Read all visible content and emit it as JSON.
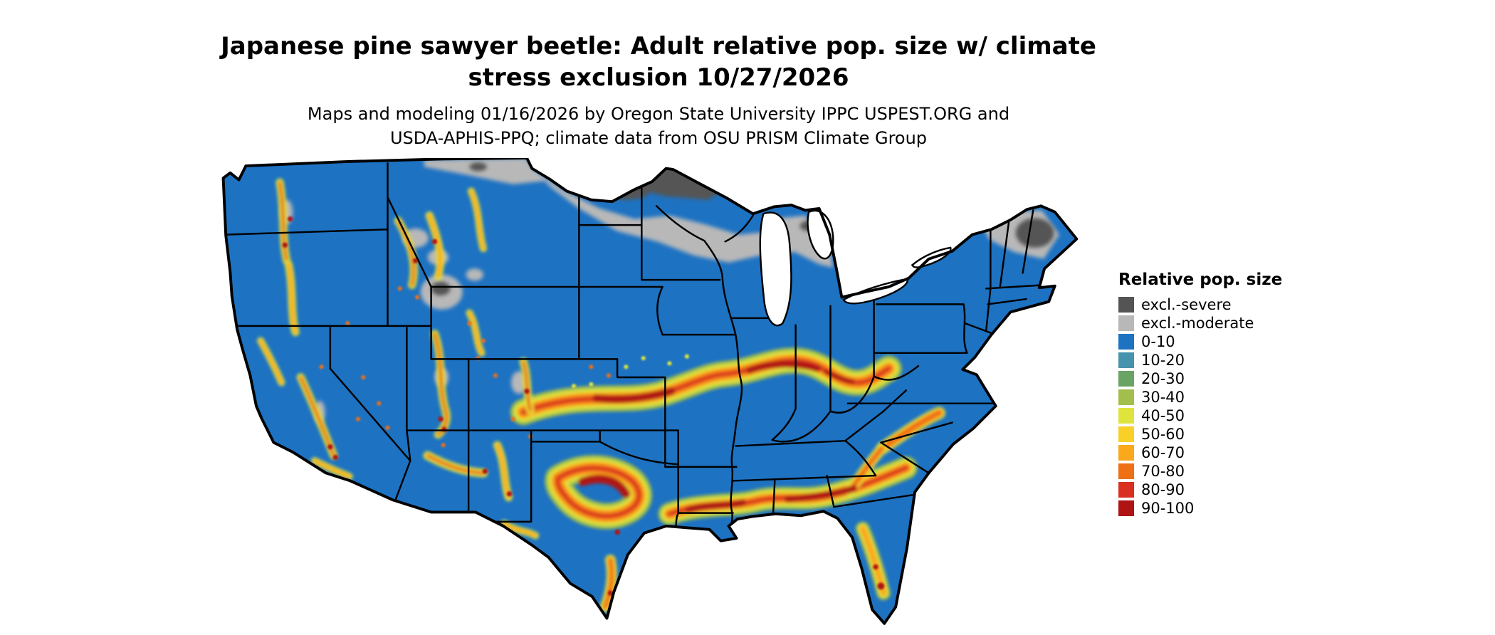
{
  "title": {
    "line1": "Japanese pine sawyer beetle: Adult relative pop. size w/ climate",
    "line2": "stress exclusion 10/27/2026"
  },
  "subtitle": {
    "line1": "Maps and modeling 01/16/2026 by Oregon State University IPPC USPEST.ORG and",
    "line2": "USDA-APHIS-PPQ; climate data from OSU PRISM Climate Group"
  },
  "legend": {
    "title": "Relative pop. size",
    "items": [
      {
        "label": "excl.-severe",
        "color": "#545454"
      },
      {
        "label": "excl.-moderate",
        "color": "#b8b8b8"
      },
      {
        "label": "0-10",
        "color": "#1d72c2"
      },
      {
        "label": "10-20",
        "color": "#4793ae"
      },
      {
        "label": "20-30",
        "color": "#6aa464"
      },
      {
        "label": "30-40",
        "color": "#a2bf4e"
      },
      {
        "label": "40-50",
        "color": "#dfe43c"
      },
      {
        "label": "50-60",
        "color": "#f8d028"
      },
      {
        "label": "60-70",
        "color": "#fba81c"
      },
      {
        "label": "70-80",
        "color": "#ef7014"
      },
      {
        "label": "80-90",
        "color": "#d93020"
      },
      {
        "label": "90-100",
        "color": "#b01313"
      }
    ]
  }
}
